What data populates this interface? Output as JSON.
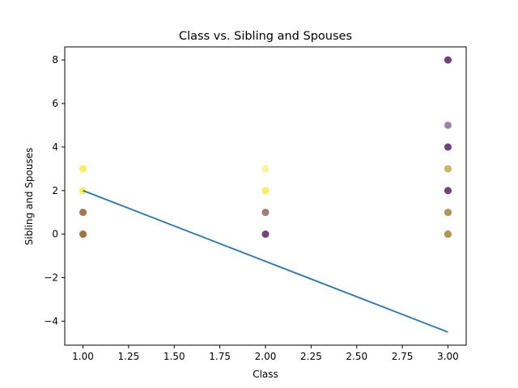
{
  "chart_data": {
    "type": "scatter",
    "title": "Class vs. Sibling and Spouses",
    "xlabel": "Class",
    "ylabel": "Sibling and Spouses",
    "xlim": [
      0.9,
      3.1
    ],
    "ylim": [
      -5.1,
      8.6
    ],
    "xticks": [
      1.0,
      1.25,
      1.5,
      1.75,
      2.0,
      2.25,
      2.5,
      2.75,
      3.0
    ],
    "xtick_labels": [
      "1.00",
      "1.25",
      "1.50",
      "1.75",
      "2.00",
      "2.25",
      "2.50",
      "2.75",
      "3.00"
    ],
    "yticks": [
      -4,
      -2,
      0,
      2,
      4,
      6,
      8
    ],
    "ytick_labels": [
      "−4",
      "−2",
      "0",
      "2",
      "4",
      "6",
      "8"
    ],
    "grid": false,
    "colormap": "viridis",
    "colors": {
      "survived": "#fde725",
      "not_survived": "#440154",
      "trend_line": "#1f77b4",
      "point_alpha": 0.5
    },
    "points": [
      {
        "x": 1,
        "y": 0,
        "survived": 1
      },
      {
        "x": 1,
        "y": 0,
        "survived": 1
      },
      {
        "x": 1,
        "y": 0,
        "survived": 1
      },
      {
        "x": 1,
        "y": 0,
        "survived": 1
      },
      {
        "x": 1,
        "y": 0,
        "survived": 0
      },
      {
        "x": 1,
        "y": 1,
        "survived": 1
      },
      {
        "x": 1,
        "y": 1,
        "survived": 1
      },
      {
        "x": 1,
        "y": 1,
        "survived": 0
      },
      {
        "x": 1,
        "y": 2,
        "survived": 1
      },
      {
        "x": 1,
        "y": 2,
        "survived": 1
      },
      {
        "x": 1,
        "y": 3,
        "survived": 1
      },
      {
        "x": 1,
        "y": 3,
        "survived": 1
      },
      {
        "x": 2,
        "y": 0,
        "survived": 0
      },
      {
        "x": 2,
        "y": 0,
        "survived": 0
      },
      {
        "x": 2,
        "y": 1,
        "survived": 1
      },
      {
        "x": 2,
        "y": 1,
        "survived": 0
      },
      {
        "x": 2,
        "y": 2,
        "survived": 1
      },
      {
        "x": 2,
        "y": 2,
        "survived": 1
      },
      {
        "x": 2,
        "y": 3,
        "survived": 1
      },
      {
        "x": 3,
        "y": 0,
        "survived": 0
      },
      {
        "x": 3,
        "y": 0,
        "survived": 0
      },
      {
        "x": 3,
        "y": 0,
        "survived": 1
      },
      {
        "x": 3,
        "y": 1,
        "survived": 0
      },
      {
        "x": 3,
        "y": 1,
        "survived": 0
      },
      {
        "x": 3,
        "y": 1,
        "survived": 1
      },
      {
        "x": 3,
        "y": 2,
        "survived": 0
      },
      {
        "x": 3,
        "y": 2,
        "survived": 0
      },
      {
        "x": 3,
        "y": 3,
        "survived": 0
      },
      {
        "x": 3,
        "y": 3,
        "survived": 1
      },
      {
        "x": 3,
        "y": 4,
        "survived": 0
      },
      {
        "x": 3,
        "y": 4,
        "survived": 0
      },
      {
        "x": 3,
        "y": 5,
        "survived": 0
      },
      {
        "x": 3,
        "y": 8,
        "survived": 0
      },
      {
        "x": 3,
        "y": 8,
        "survived": 0
      }
    ],
    "line": {
      "x": [
        1.0,
        3.0
      ],
      "y": [
        2.0,
        -4.5
      ]
    }
  }
}
